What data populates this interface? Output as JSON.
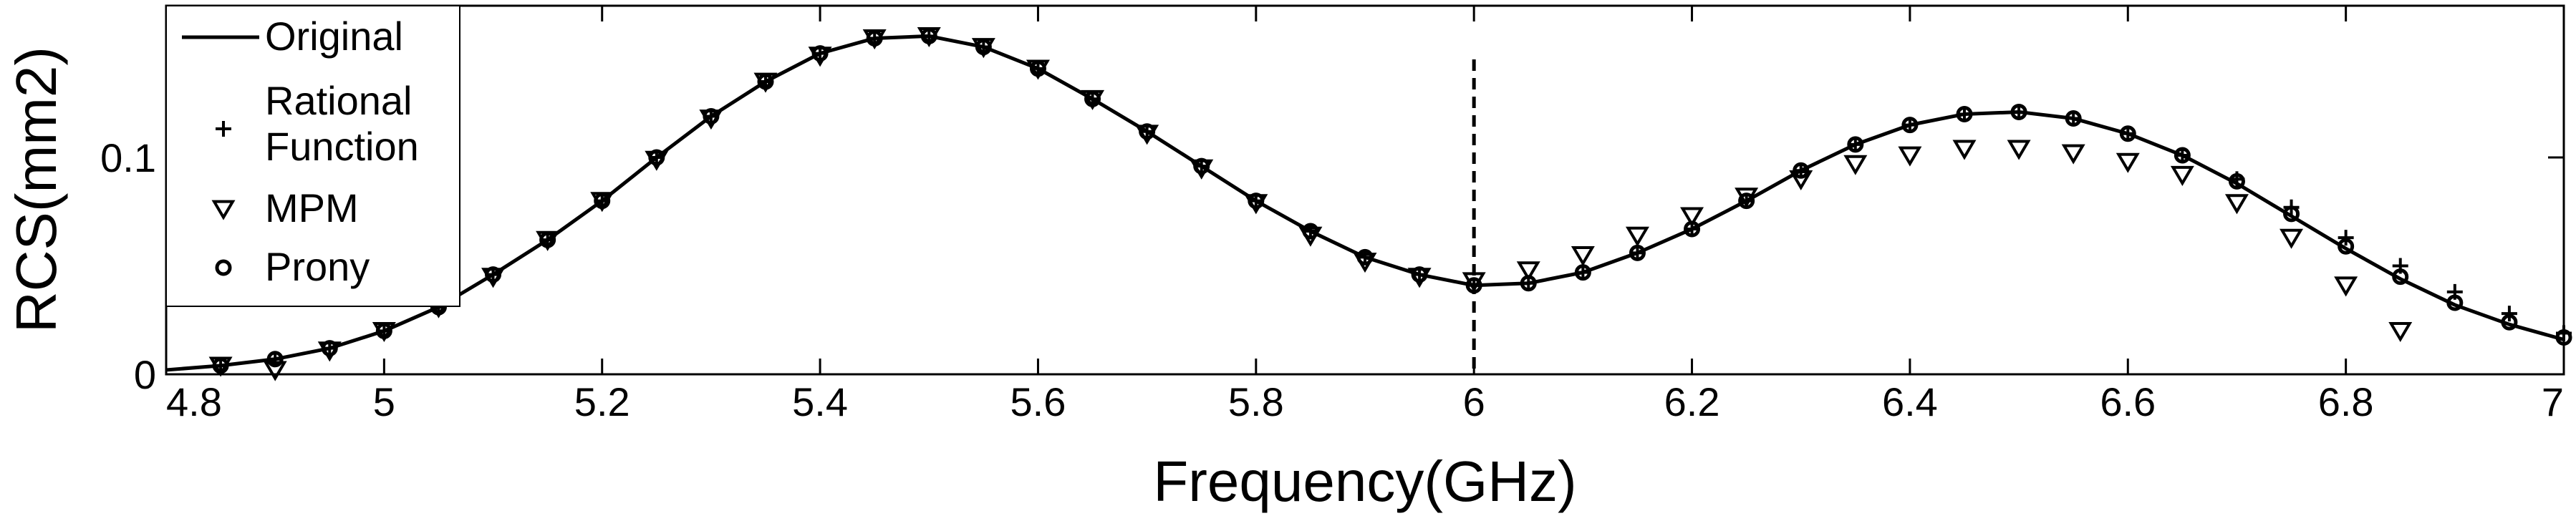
{
  "chart_data": {
    "type": "line",
    "xlabel": "Frequency(GHz)",
    "ylabel": "RCS(mm2)",
    "xlim": [
      4.8,
      7.0
    ],
    "ylim": [
      0,
      0.17
    ],
    "x_ticks": [
      "4.8",
      "5",
      "5.2",
      "5.4",
      "5.6",
      "5.8",
      "6",
      "6.2",
      "6.4",
      "6.6",
      "6.8",
      "7"
    ],
    "y_ticks": [
      "0",
      "0.1"
    ],
    "y_tick_values": [
      0,
      0.1
    ],
    "grid": false,
    "legend_position": "top-left",
    "vertical_reference_line": {
      "x": 6.0,
      "style": "dashed"
    },
    "x": [
      4.8,
      4.85,
      4.9,
      4.95,
      5.0,
      5.05,
      5.1,
      5.15,
      5.2,
      5.25,
      5.3,
      5.35,
      5.4,
      5.45,
      5.5,
      5.55,
      5.6,
      5.65,
      5.7,
      5.75,
      5.8,
      5.85,
      5.9,
      5.95,
      6.0,
      6.05,
      6.1,
      6.15,
      6.2,
      6.25,
      6.3,
      6.35,
      6.4,
      6.45,
      6.5,
      6.55,
      6.6,
      6.65,
      6.7,
      6.75,
      6.8,
      6.85,
      6.9,
      6.95,
      7.0
    ],
    "series": [
      {
        "name": "Original",
        "marker": "line",
        "x": [
          4.8,
          4.85,
          4.9,
          4.95,
          5.0,
          5.05,
          5.1,
          5.15,
          5.2,
          5.25,
          5.3,
          5.35,
          5.4,
          5.45,
          5.5,
          5.55,
          5.6,
          5.65,
          5.7,
          5.75,
          5.8,
          5.85,
          5.9,
          5.95,
          6.0,
          6.05,
          6.1,
          6.15,
          6.2,
          6.25,
          6.3,
          6.35,
          6.4,
          6.45,
          6.5,
          6.55,
          6.6,
          6.65,
          6.7,
          6.75,
          6.8,
          6.85,
          6.9,
          6.95,
          7.0
        ],
        "values": [
          0.002,
          0.004,
          0.007,
          0.012,
          0.02,
          0.031,
          0.046,
          0.062,
          0.08,
          0.1,
          0.119,
          0.135,
          0.148,
          0.155,
          0.156,
          0.151,
          0.141,
          0.127,
          0.112,
          0.096,
          0.08,
          0.066,
          0.054,
          0.046,
          0.041,
          0.042,
          0.047,
          0.056,
          0.067,
          0.08,
          0.094,
          0.106,
          0.115,
          0.12,
          0.121,
          0.118,
          0.111,
          0.101,
          0.088,
          0.073,
          0.058,
          0.044,
          0.032,
          0.023,
          0.016
        ]
      },
      {
        "name": "Rational Function",
        "marker": "plus",
        "x": [
          4.85,
          4.9,
          4.95,
          5.0,
          5.05,
          5.1,
          5.15,
          5.2,
          5.25,
          5.3,
          5.35,
          5.4,
          5.45,
          5.5,
          5.55,
          5.6,
          5.65,
          5.7,
          5.75,
          5.8,
          5.85,
          5.9,
          5.95,
          6.0,
          6.05,
          6.1,
          6.15,
          6.2,
          6.25,
          6.3,
          6.35,
          6.4,
          6.45,
          6.5,
          6.55,
          6.6,
          6.65,
          6.7,
          6.75,
          6.8,
          6.85,
          6.9,
          6.95,
          7.0
        ],
        "values": [
          0.004,
          0.007,
          0.012,
          0.02,
          0.031,
          0.046,
          0.062,
          0.08,
          0.1,
          0.119,
          0.135,
          0.148,
          0.155,
          0.156,
          0.151,
          0.141,
          0.127,
          0.112,
          0.096,
          0.08,
          0.066,
          0.054,
          0.046,
          0.041,
          0.042,
          0.047,
          0.056,
          0.067,
          0.08,
          0.094,
          0.106,
          0.115,
          0.12,
          0.121,
          0.118,
          0.111,
          0.101,
          0.09,
          0.077,
          0.063,
          0.05,
          0.038,
          0.028,
          0.019
        ]
      },
      {
        "name": "MPM",
        "marker": "triangle-down",
        "x": [
          4.85,
          4.9,
          4.95,
          5.0,
          5.05,
          5.1,
          5.15,
          5.2,
          5.25,
          5.3,
          5.35,
          5.4,
          5.45,
          5.5,
          5.55,
          5.6,
          5.65,
          5.7,
          5.75,
          5.8,
          5.85,
          5.9,
          5.95,
          6.0,
          6.05,
          6.1,
          6.15,
          6.2,
          6.25,
          6.3,
          6.35,
          6.4,
          6.45,
          6.5,
          6.55,
          6.6,
          6.65,
          6.7,
          6.75,
          6.8,
          6.85
        ],
        "values": [
          0.004,
          0.002,
          0.011,
          0.02,
          0.031,
          0.045,
          0.062,
          0.08,
          0.099,
          0.118,
          0.135,
          0.147,
          0.155,
          0.156,
          0.151,
          0.141,
          0.127,
          0.111,
          0.095,
          0.079,
          0.064,
          0.052,
          0.045,
          0.043,
          0.048,
          0.055,
          0.064,
          0.073,
          0.082,
          0.09,
          0.097,
          0.101,
          0.104,
          0.104,
          0.102,
          0.098,
          0.092,
          0.079,
          0.063,
          0.041,
          0.02
        ]
      },
      {
        "name": "Prony",
        "marker": "circle",
        "x": [
          4.85,
          4.9,
          4.95,
          5.0,
          5.05,
          5.1,
          5.15,
          5.2,
          5.25,
          5.3,
          5.35,
          5.4,
          5.45,
          5.5,
          5.55,
          5.6,
          5.65,
          5.7,
          5.75,
          5.8,
          5.85,
          5.9,
          5.95,
          6.0,
          6.05,
          6.1,
          6.15,
          6.2,
          6.25,
          6.3,
          6.35,
          6.4,
          6.45,
          6.5,
          6.55,
          6.6,
          6.65,
          6.7,
          6.75,
          6.8,
          6.85,
          6.9,
          6.95,
          7.0
        ],
        "values": [
          0.004,
          0.007,
          0.012,
          0.02,
          0.031,
          0.046,
          0.062,
          0.08,
          0.1,
          0.119,
          0.135,
          0.148,
          0.155,
          0.156,
          0.151,
          0.141,
          0.127,
          0.112,
          0.096,
          0.08,
          0.066,
          0.054,
          0.046,
          0.041,
          0.042,
          0.047,
          0.056,
          0.067,
          0.08,
          0.094,
          0.106,
          0.115,
          0.12,
          0.121,
          0.118,
          0.111,
          0.101,
          0.089,
          0.074,
          0.059,
          0.045,
          0.033,
          0.024,
          0.017
        ]
      }
    ],
    "legend": [
      {
        "label": "Original",
        "marker": "line"
      },
      {
        "label_lines": [
          "Rational",
          "Function"
        ],
        "marker": "plus"
      },
      {
        "label": "MPM",
        "marker": "triangle-down"
      },
      {
        "label": "Prony",
        "marker": "circle"
      }
    ]
  }
}
